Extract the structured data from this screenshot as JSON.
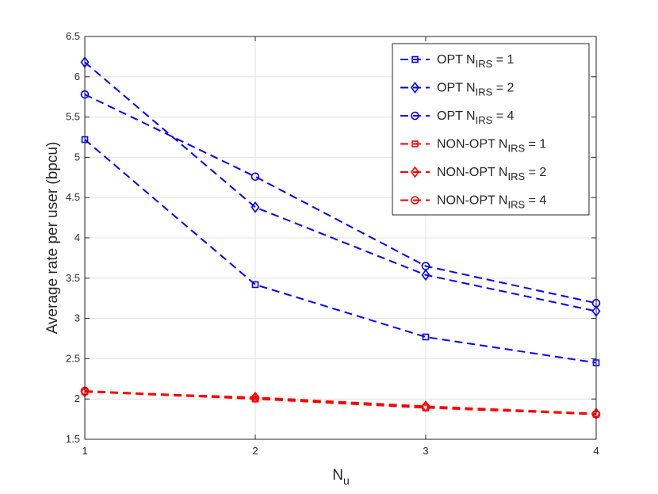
{
  "chart_data": {
    "type": "line",
    "title": "",
    "xlabel": "N",
    "xlabel_sub": "u",
    "ylabel": "Average rate per user (bpcu)",
    "x": [
      1,
      2,
      3,
      4
    ],
    "xlim": [
      1,
      4
    ],
    "ylim": [
      1.5,
      6.5
    ],
    "xticks": [
      "1",
      "2",
      "3",
      "4"
    ],
    "yticks": [
      "1.5",
      "2",
      "2.5",
      "3",
      "3.5",
      "4",
      "4.5",
      "5",
      "5.5",
      "6",
      "6.5"
    ],
    "grid": true,
    "legend_position": "top-right",
    "series": [
      {
        "name": "OPT N",
        "sub": "IRS",
        "suffix": " = 1",
        "color": "#0000ff",
        "marker": "square",
        "values": [
          5.22,
          3.42,
          2.77,
          2.45
        ]
      },
      {
        "name": "OPT N",
        "sub": "IRS",
        "suffix": " = 2",
        "color": "#0000ff",
        "marker": "diamond",
        "values": [
          6.18,
          4.38,
          3.54,
          3.09
        ]
      },
      {
        "name": "OPT N",
        "sub": "IRS",
        "suffix": " = 4",
        "color": "#0000ff",
        "marker": "circle",
        "values": [
          5.78,
          4.76,
          3.65,
          3.19
        ]
      },
      {
        "name": "NON-OPT N",
        "sub": "IRS",
        "suffix": " = 1",
        "color": "#ff0000",
        "marker": "square",
        "values": [
          2.09,
          2.0,
          1.89,
          1.81
        ]
      },
      {
        "name": "NON-OPT N",
        "sub": "IRS",
        "suffix": " = 2",
        "color": "#ff0000",
        "marker": "diamond",
        "values": [
          2.09,
          2.02,
          1.91,
          1.82
        ]
      },
      {
        "name": "NON-OPT N",
        "sub": "IRS",
        "suffix": " = 4",
        "color": "#ff0000",
        "marker": "circle",
        "values": [
          2.1,
          2.01,
          1.9,
          1.81
        ]
      }
    ]
  }
}
